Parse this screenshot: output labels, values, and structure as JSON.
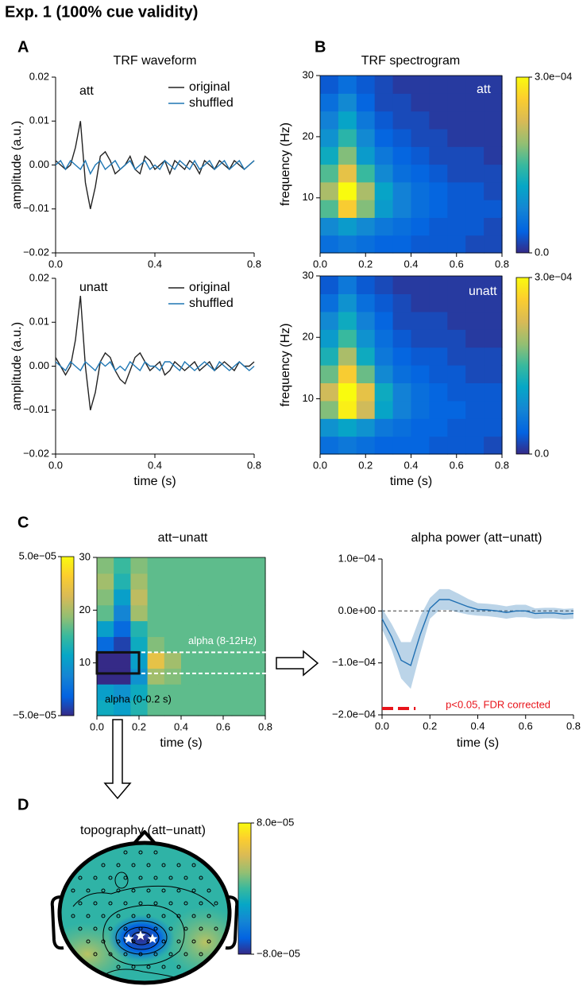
{
  "figure": {
    "title": "Exp. 1 (100% cue validity)",
    "panels": [
      {
        "letter": "A",
        "title": "TRF waveform"
      },
      {
        "letter": "B",
        "title": "TRF spectrogram"
      },
      {
        "letter": "C"
      },
      {
        "letter": "D"
      }
    ]
  },
  "chart_data": [
    {
      "type": "line",
      "annotation": "att",
      "ylabel": "amplitude (a.u.)",
      "x": [
        0,
        0.02,
        0.04,
        0.06,
        0.08,
        0.1,
        0.12,
        0.14,
        0.16,
        0.18,
        0.2,
        0.22,
        0.24,
        0.26,
        0.28,
        0.3,
        0.32,
        0.34,
        0.36,
        0.38,
        0.4,
        0.42,
        0.44,
        0.46,
        0.48,
        0.5,
        0.52,
        0.54,
        0.56,
        0.58,
        0.6,
        0.62,
        0.64,
        0.66,
        0.68,
        0.7,
        0.72,
        0.74,
        0.76,
        0.78,
        0.8
      ],
      "series": [
        {
          "name": "original",
          "color": "#222222",
          "values": [
            0.001,
            0.0,
            -0.001,
            0.0,
            0.004,
            0.01,
            -0.004,
            -0.01,
            -0.005,
            0.002,
            0.003,
            0.001,
            -0.002,
            -0.001,
            0.0,
            0.002,
            -0.001,
            -0.002,
            0.002,
            0.001,
            -0.001,
            0.0,
            0.001,
            -0.002,
            0.001,
            0.0,
            -0.001,
            0.001,
            0.0,
            -0.002,
            0.001,
            0.0,
            -0.001,
            0.001,
            0.0,
            -0.001,
            0.001,
            0.0,
            -0.001,
            0.0,
            0.001
          ]
        },
        {
          "name": "shuffled",
          "color": "#1f77b4",
          "values": [
            0.0,
            0.001,
            -0.001,
            0.001,
            0.0,
            -0.001,
            0.001,
            -0.002,
            0.0,
            0.001,
            -0.001,
            0.0,
            0.001,
            -0.001,
            0.0,
            0.001,
            -0.001,
            0.0,
            0.001,
            -0.001,
            0.0,
            -0.001,
            0.001,
            0.0,
            -0.001,
            0.001,
            0.0,
            -0.001,
            0.001,
            -0.001,
            0.0,
            0.001,
            -0.001,
            0.0,
            0.001,
            -0.001,
            0.0,
            0.001,
            -0.001,
            0.0,
            0.001
          ]
        }
      ],
      "xlim": [
        0,
        0.8
      ],
      "ylim": [
        -0.02,
        0.02
      ],
      "xticks": [
        {
          "value": 0,
          "label": "0.0"
        },
        {
          "value": 0.4,
          "label": "0.4"
        },
        {
          "value": 0.8,
          "label": "0.8"
        }
      ],
      "yticks": [
        {
          "value": 0.02,
          "label": "0.02"
        },
        {
          "value": 0.01,
          "label": "0.01"
        },
        {
          "value": 0,
          "label": "0.00"
        },
        {
          "value": -0.01,
          "label": "−0.01"
        },
        {
          "value": -0.02,
          "label": "−0.02"
        }
      ]
    },
    {
      "type": "line",
      "annotation": "unatt",
      "ylabel": "amplitude (a.u.)",
      "xlabel": "time (s)",
      "x": [
        0,
        0.02,
        0.04,
        0.06,
        0.08,
        0.1,
        0.12,
        0.14,
        0.16,
        0.18,
        0.2,
        0.22,
        0.24,
        0.26,
        0.28,
        0.3,
        0.32,
        0.34,
        0.36,
        0.38,
        0.4,
        0.42,
        0.44,
        0.46,
        0.48,
        0.5,
        0.52,
        0.54,
        0.56,
        0.58,
        0.6,
        0.62,
        0.64,
        0.66,
        0.68,
        0.7,
        0.72,
        0.74,
        0.76,
        0.78,
        0.8
      ],
      "series": [
        {
          "name": "original",
          "color": "#222222",
          "values": [
            0.002,
            0.0,
            -0.002,
            0.0,
            0.006,
            0.016,
            0.0,
            -0.01,
            -0.006,
            0.001,
            0.003,
            0.002,
            -0.001,
            -0.003,
            -0.004,
            -0.001,
            0.002,
            0.003,
            0.001,
            -0.001,
            0.0,
            0.001,
            -0.002,
            -0.001,
            0.001,
            0.0,
            -0.001,
            0.0,
            0.001,
            -0.001,
            0.0,
            0.001,
            -0.001,
            0.0,
            0.001,
            0.0,
            -0.001,
            0.001,
            0.0,
            0.0,
            0.001
          ]
        },
        {
          "name": "shuffled",
          "color": "#1f77b4",
          "values": [
            0.001,
            0.0,
            -0.001,
            0.001,
            0.0,
            -0.001,
            0.001,
            0.0,
            -0.001,
            0.001,
            0.0,
            0.001,
            -0.001,
            0.0,
            -0.001,
            0.001,
            0.0,
            -0.001,
            0.001,
            0.0,
            0.0,
            -0.001,
            0.001,
            0.001,
            0.0,
            -0.001,
            0.001,
            0.0,
            -0.001,
            0.0,
            0.001,
            0.0,
            -0.001,
            0.001,
            0.0,
            -0.001,
            0.0,
            0.001,
            0.0,
            -0.001,
            0.0
          ]
        }
      ],
      "xlim": [
        0,
        0.8
      ],
      "ylim": [
        -0.02,
        0.02
      ],
      "xticks": [
        {
          "value": 0,
          "label": "0.0"
        },
        {
          "value": 0.4,
          "label": "0.4"
        },
        {
          "value": 0.8,
          "label": "0.8"
        }
      ],
      "yticks": [
        {
          "value": 0.02,
          "label": "0.02"
        },
        {
          "value": 0.01,
          "label": "0.01"
        },
        {
          "value": 0,
          "label": "0.00"
        },
        {
          "value": -0.01,
          "label": "−0.01"
        },
        {
          "value": -0.02,
          "label": "−0.02"
        }
      ]
    },
    {
      "type": "heatmap",
      "annotation": "att",
      "ylabel": "frequency (Hz)",
      "colormap": "parula",
      "x": [
        0.04,
        0.12,
        0.2,
        0.28,
        0.36,
        0.44,
        0.52,
        0.6,
        0.68,
        0.76
      ],
      "y": [
        2.45,
        5.35,
        8.25,
        11.15,
        14.05,
        16.95,
        19.85,
        22.75,
        25.65,
        28.55
      ],
      "z": [
        [
          5e-05,
          6e-05,
          5e-05,
          4e-05,
          4e-05,
          3e-05,
          3e-05,
          3e-05,
          2e-05,
          2e-05
        ],
        [
          8e-05,
          0.0001,
          8e-05,
          6e-05,
          5e-05,
          4e-05,
          3e-05,
          3e-05,
          3e-05,
          2e-05
        ],
        [
          0.00016,
          0.00026,
          0.00018,
          0.0001,
          7e-05,
          5e-05,
          4e-05,
          3e-05,
          3e-05,
          3e-05
        ],
        [
          0.0002,
          0.0003,
          0.0002,
          0.00011,
          7e-05,
          5e-05,
          4e-05,
          3e-05,
          3e-05,
          2e-05
        ],
        [
          0.00016,
          0.00024,
          0.00015,
          8e-05,
          5e-05,
          4e-05,
          3e-05,
          2e-05,
          2e-05,
          2e-05
        ],
        [
          0.00012,
          0.00018,
          0.0001,
          6e-05,
          4e-05,
          3e-05,
          2e-05,
          2e-05,
          2e-05,
          1e-05
        ],
        [
          9e-05,
          0.00014,
          8e-05,
          4e-05,
          3e-05,
          2e-05,
          2e-05,
          1e-05,
          1e-05,
          1e-05
        ],
        [
          7e-05,
          0.00011,
          6e-05,
          3e-05,
          2e-05,
          2e-05,
          1e-05,
          1e-05,
          1e-05,
          1e-05
        ],
        [
          5e-05,
          8e-05,
          4e-05,
          2e-05,
          2e-05,
          1e-05,
          1e-05,
          1e-05,
          1e-05,
          1e-05
        ],
        [
          3e-05,
          5e-05,
          3e-05,
          2e-05,
          1e-05,
          1e-05,
          1e-05,
          1e-05,
          1e-05,
          1e-05
        ]
      ],
      "xlim": [
        0,
        0.8
      ],
      "ylim": [
        1,
        30
      ],
      "xticks": [
        {
          "value": 0,
          "label": "0.0"
        },
        {
          "value": 0.2,
          "label": "0.2"
        },
        {
          "value": 0.4,
          "label": "0.4"
        },
        {
          "value": 0.6,
          "label": "0.6"
        },
        {
          "value": 0.8,
          "label": "0.8"
        }
      ],
      "yticks": [
        10,
        20,
        30
      ],
      "clim": [
        0,
        0.0003
      ],
      "cticks": [
        {
          "value": 0.0003,
          "label": "3.0e−04"
        },
        {
          "value": 0,
          "label": "0.0"
        }
      ]
    },
    {
      "type": "heatmap",
      "annotation": "unatt",
      "ylabel": "frequency (Hz)",
      "xlabel": "time (s)",
      "colormap": "parula",
      "x": [
        0.04,
        0.12,
        0.2,
        0.28,
        0.36,
        0.44,
        0.52,
        0.6,
        0.68,
        0.76
      ],
      "y": [
        2.45,
        5.35,
        8.25,
        11.15,
        14.05,
        16.95,
        19.85,
        22.75,
        25.65,
        28.55
      ],
      "z": [
        [
          5e-05,
          6e-05,
          5e-05,
          4e-05,
          4e-05,
          4e-05,
          3e-05,
          3e-05,
          3e-05,
          2e-05
        ],
        [
          9e-05,
          0.00011,
          9e-05,
          6e-05,
          5e-05,
          4e-05,
          4e-05,
          3e-05,
          3e-05,
          3e-05
        ],
        [
          0.00018,
          0.00029,
          0.00022,
          0.00011,
          7e-05,
          5e-05,
          4e-05,
          4e-05,
          3e-05,
          3e-05
        ],
        [
          0.00022,
          0.0003,
          0.00024,
          0.00012,
          7e-05,
          5e-05,
          4e-05,
          3e-05,
          3e-05,
          3e-05
        ],
        [
          0.00017,
          0.00026,
          0.00017,
          8e-05,
          5e-05,
          4e-05,
          3e-05,
          3e-05,
          2e-05,
          2e-05
        ],
        [
          0.00013,
          0.0002,
          0.00012,
          6e-05,
          4e-05,
          3e-05,
          3e-05,
          2e-05,
          2e-05,
          2e-05
        ],
        [
          0.0001,
          0.00015,
          9e-05,
          5e-05,
          3e-05,
          2e-05,
          2e-05,
          2e-05,
          1e-05,
          1e-05
        ],
        [
          8e-05,
          0.00012,
          7e-05,
          4e-05,
          2e-05,
          2e-05,
          2e-05,
          1e-05,
          1e-05,
          1e-05
        ],
        [
          5e-05,
          9e-05,
          5e-05,
          3e-05,
          2e-05,
          1e-05,
          1e-05,
          1e-05,
          1e-05,
          1e-05
        ],
        [
          3e-05,
          6e-05,
          3e-05,
          2e-05,
          1e-05,
          1e-05,
          1e-05,
          1e-05,
          1e-05,
          1e-05
        ]
      ],
      "xlim": [
        0,
        0.8
      ],
      "ylim": [
        1,
        30
      ],
      "xticks": [
        {
          "value": 0,
          "label": "0.0"
        },
        {
          "value": 0.2,
          "label": "0.2"
        },
        {
          "value": 0.4,
          "label": "0.4"
        },
        {
          "value": 0.6,
          "label": "0.6"
        },
        {
          "value": 0.8,
          "label": "0.8"
        }
      ],
      "yticks": [
        10,
        20,
        30
      ],
      "clim": [
        0,
        0.0003
      ],
      "cticks": [
        {
          "value": 0.0003,
          "label": "3.0e−04"
        },
        {
          "value": 0,
          "label": "0.0"
        }
      ]
    },
    {
      "type": "heatmap",
      "title": "att−unatt",
      "xlabel": "time (s)",
      "colormap": "parula",
      "x": [
        0.04,
        0.12,
        0.2,
        0.28,
        0.36,
        0.44,
        0.52,
        0.6,
        0.68,
        0.76
      ],
      "y": [
        1.5,
        4.5,
        7.5,
        10.5,
        13.5,
        16.5,
        19.5,
        22.5,
        25.5,
        28.5
      ],
      "z": [
        [
          -1e-05,
          -1.5e-05,
          -5e-06,
          5e-06,
          5e-06,
          5e-06,
          5e-06,
          5e-06,
          5e-06,
          5e-06
        ],
        [
          -1.5e-05,
          -2e-05,
          -1e-05,
          5e-06,
          5e-06,
          5e-06,
          5e-06,
          5e-06,
          5e-06,
          5e-06
        ],
        [
          -5e-05,
          -5e-05,
          -2e-05,
          1.5e-05,
          1e-05,
          5e-06,
          5e-06,
          5e-06,
          5e-06,
          5e-06
        ],
        [
          -5e-05,
          -5e-05,
          -1.5e-05,
          3e-05,
          1.5e-05,
          5e-06,
          5e-06,
          5e-06,
          5e-06,
          5e-06
        ],
        [
          -3.5e-05,
          -4.5e-05,
          -1e-05,
          1e-05,
          5e-06,
          5e-06,
          5e-06,
          5e-06,
          5e-06,
          5e-06
        ],
        [
          -1.5e-05,
          -3.5e-05,
          -5e-06,
          5e-06,
          5e-06,
          5e-06,
          5e-06,
          5e-06,
          5e-06,
          5e-06
        ],
        [
          5e-06,
          -2.5e-05,
          1.5e-05,
          5e-06,
          5e-06,
          5e-06,
          5e-06,
          5e-06,
          5e-06,
          5e-06
        ],
        [
          1e-05,
          -1.5e-05,
          2e-05,
          5e-06,
          5e-06,
          5e-06,
          5e-06,
          5e-06,
          5e-06,
          5e-06
        ],
        [
          1.5e-05,
          -5e-06,
          1.5e-05,
          5e-06,
          5e-06,
          5e-06,
          5e-06,
          5e-06,
          5e-06,
          5e-06
        ],
        [
          1e-05,
          0,
          1e-05,
          5e-06,
          5e-06,
          5e-06,
          5e-06,
          5e-06,
          5e-06,
          5e-06
        ]
      ],
      "xlim": [
        0,
        0.8
      ],
      "ylim": [
        0,
        30
      ],
      "xticks": [
        {
          "value": 0,
          "label": "0.0"
        },
        {
          "value": 0.2,
          "label": "0.2"
        },
        {
          "value": 0.4,
          "label": "0.4"
        },
        {
          "value": 0.6,
          "label": "0.6"
        },
        {
          "value": 0.8,
          "label": "0.8"
        }
      ],
      "yticks": [
        10,
        20,
        30
      ],
      "clim": [
        -5e-05,
        5e-05
      ],
      "cticks": [
        {
          "value": 5e-05,
          "label": "5.0e−05"
        },
        {
          "value": -5e-05,
          "label": "−5.0e−05"
        }
      ],
      "roi_time": [
        0,
        0.2
      ],
      "roi_freq": [
        8,
        12
      ],
      "annotations": [
        "alpha (8-12Hz)",
        "alpha (0-0.2 s)"
      ]
    },
    {
      "type": "line",
      "title": "alpha power (att−unatt)",
      "xlabel": "time (s)",
      "x": [
        0,
        0.04,
        0.08,
        0.12,
        0.16,
        0.2,
        0.24,
        0.28,
        0.32,
        0.36,
        0.4,
        0.44,
        0.48,
        0.52,
        0.56,
        0.6,
        0.64,
        0.68,
        0.72,
        0.76,
        0.8
      ],
      "series": [
        {
          "color": "#1f6fb2",
          "values": [
            -1.5e-05,
            -5e-05,
            -9.5e-05,
            -0.000105,
            -4.5e-05,
            5e-06,
            2.2e-05,
            2.2e-05,
            1.5e-05,
            8e-06,
            3e-06,
            2e-06,
            0,
            -3e-06,
            0,
            0,
            -5e-06,
            -4e-06,
            -4e-06,
            -6e-06,
            -5e-06
          ],
          "error": [
            2e-05,
            2.5e-05,
            3.5e-05,
            4.5e-05,
            3.5e-05,
            2e-05,
            2e-05,
            2e-05,
            1.8e-05,
            1.5e-05,
            1.2e-05,
            1.2e-05,
            1.2e-05,
            1.2e-05,
            1.2e-05,
            1.2e-05,
            1e-05,
            1e-05,
            1e-05,
            1e-05,
            1e-05
          ]
        }
      ],
      "hline": 0,
      "significance": {
        "x": [
          0,
          0.14
        ],
        "label": "p<0.05, FDR corrected",
        "color": "#e8141b"
      },
      "xlim": [
        0,
        0.8
      ],
      "ylim": [
        -0.0002,
        0.0001
      ],
      "xticks": [
        {
          "value": 0,
          "label": "0.0"
        },
        {
          "value": 0.2,
          "label": "0.2"
        },
        {
          "value": 0.4,
          "label": "0.4"
        },
        {
          "value": 0.6,
          "label": "0.6"
        },
        {
          "value": 0.8,
          "label": "0.8"
        }
      ],
      "yticks": [
        {
          "value": 0.0001,
          "label": "1.0e−04"
        },
        {
          "value": 0,
          "label": "0.0e+00"
        },
        {
          "value": -0.0001,
          "label": "−1.0e−04"
        },
        {
          "value": -0.0002,
          "label": "−2.0e−04"
        }
      ]
    },
    {
      "type": "topography",
      "title": "topography (att−unatt)",
      "clim": [
        -8e-05,
        8e-05
      ],
      "cticks": [
        {
          "value": 8e-05,
          "label": "8.0e−05"
        },
        {
          "value": -8e-05,
          "label": "−8.0e−05"
        }
      ]
    }
  ]
}
